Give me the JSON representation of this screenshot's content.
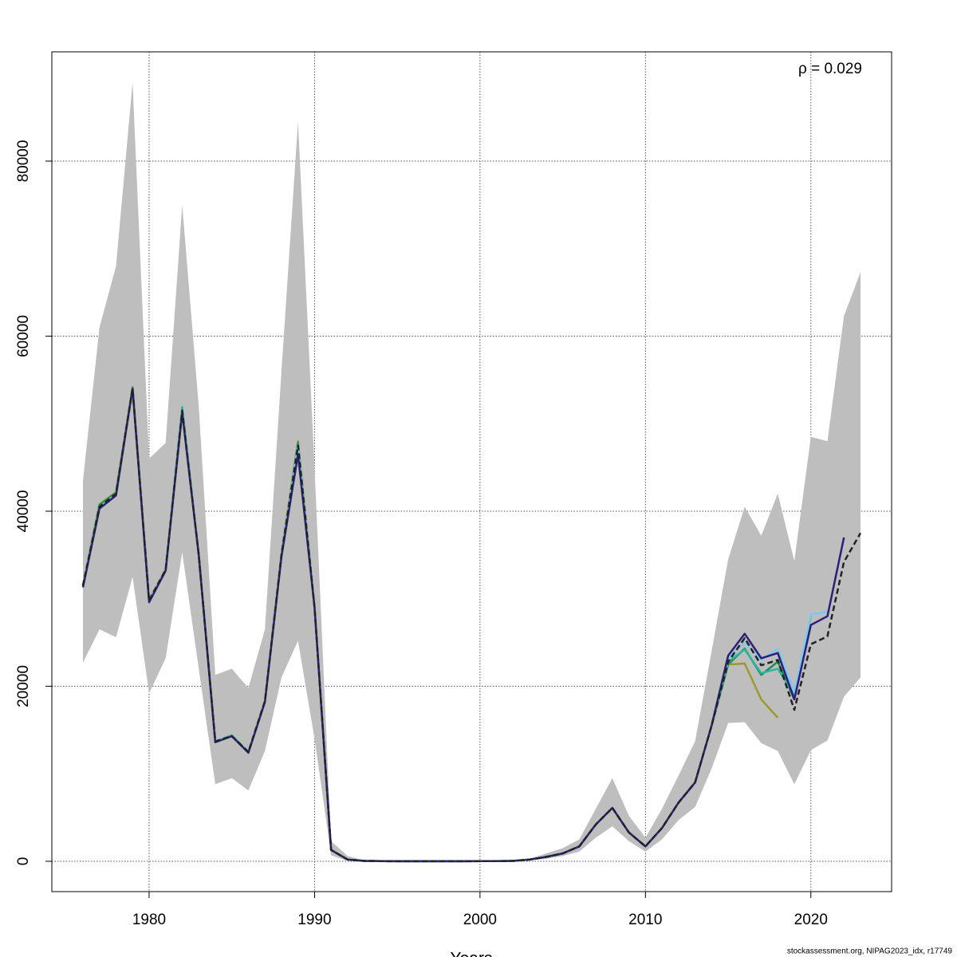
{
  "chart_data": {
    "type": "line",
    "annotation": "ρ = 0.029",
    "xlabel": "Years",
    "footer": "stockassessment.org, NIPAG2023_idx, r17749",
    "x": [
      1976,
      1977,
      1978,
      1979,
      1980,
      1981,
      1982,
      1983,
      1984,
      1985,
      1986,
      1987,
      1988,
      1989,
      1990,
      1991,
      1992,
      1993,
      1994,
      1995,
      1996,
      1997,
      1998,
      1999,
      2000,
      2001,
      2002,
      2003,
      2004,
      2005,
      2006,
      2007,
      2008,
      2009,
      2010,
      2011,
      2012,
      2013,
      2014,
      2015,
      2016,
      2017,
      2018,
      2019,
      2020,
      2021,
      2022,
      2023
    ],
    "band": {
      "color": "#bebebe",
      "upper": [
        43500,
        61000,
        68000,
        89000,
        46000,
        47800,
        75000,
        52000,
        21300,
        22000,
        19800,
        26500,
        56000,
        84500,
        45000,
        2300,
        600,
        100,
        60,
        40,
        40,
        40,
        40,
        40,
        60,
        60,
        120,
        300,
        900,
        1500,
        2500,
        6000,
        9500,
        5200,
        2700,
        6000,
        9800,
        13700,
        24000,
        34500,
        40500,
        37200,
        42000,
        34300,
        48500,
        48000,
        62300,
        67300
      ],
      "lower": [
        22700,
        26500,
        25600,
        32500,
        19200,
        23200,
        35300,
        22000,
        8800,
        9500,
        8100,
        12600,
        21000,
        25200,
        14000,
        700,
        50,
        10,
        5,
        2,
        2,
        2,
        2,
        2,
        5,
        5,
        20,
        100,
        300,
        600,
        1100,
        2700,
        4000,
        2300,
        1100,
        2500,
        4700,
        6200,
        10600,
        15800,
        15900,
        13500,
        12600,
        8800,
        12700,
        13800,
        18800,
        21000
      ]
    },
    "series": [
      {
        "color": "#9a9a30",
        "values": [
          31500,
          40800,
          42200,
          54200,
          29900,
          33400,
          51400,
          35000,
          13700,
          14300,
          12500,
          18300,
          35200,
          48000,
          29000,
          1300,
          200,
          50,
          20,
          10,
          10,
          10,
          10,
          10,
          20,
          20,
          50,
          200,
          500,
          900,
          1700,
          4200,
          6100,
          3300,
          1700,
          3800,
          6700,
          9000,
          15500,
          22500,
          22600,
          18500,
          16400,
          null,
          null,
          null,
          null,
          null
        ]
      },
      {
        "color": "#1e8c4e",
        "values": [
          31500,
          40700,
          42100,
          54100,
          29800,
          33300,
          51500,
          35000,
          13700,
          14300,
          12500,
          18300,
          35000,
          47800,
          29000,
          1300,
          200,
          50,
          20,
          10,
          10,
          10,
          10,
          10,
          20,
          20,
          50,
          200,
          500,
          900,
          1700,
          4200,
          6100,
          3300,
          1700,
          3800,
          6700,
          9000,
          15500,
          22500,
          24300,
          21300,
          22800,
          18500,
          null,
          null,
          null,
          null
        ]
      },
      {
        "color": "#2bb5a0",
        "values": [
          31500,
          40500,
          42000,
          54000,
          29800,
          33300,
          51900,
          35000,
          13700,
          14400,
          12500,
          18300,
          35000,
          47600,
          29000,
          1300,
          200,
          50,
          20,
          10,
          10,
          10,
          10,
          10,
          20,
          20,
          50,
          200,
          500,
          900,
          1700,
          4200,
          6100,
          3300,
          1700,
          3800,
          6700,
          9000,
          15500,
          22800,
          24200,
          21500,
          22000,
          19000,
          28000,
          null,
          null,
          null
        ]
      },
      {
        "color": "#7ec8f0",
        "values": [
          31500,
          40400,
          41900,
          54000,
          29800,
          33300,
          51500,
          35000,
          13700,
          14300,
          12500,
          18300,
          35000,
          47500,
          29000,
          1300,
          200,
          50,
          20,
          10,
          10,
          10,
          10,
          10,
          20,
          20,
          50,
          200,
          500,
          900,
          1700,
          4200,
          6100,
          3300,
          1700,
          3800,
          6700,
          9000,
          15500,
          23300,
          25000,
          23000,
          24300,
          19300,
          28200,
          28500,
          null,
          null
        ]
      },
      {
        "color": "#2b1f7a",
        "values": [
          31300,
          40300,
          41800,
          54000,
          29600,
          33200,
          51300,
          35000,
          13600,
          14300,
          12400,
          18200,
          34800,
          46500,
          29000,
          1300,
          200,
          50,
          20,
          10,
          10,
          10,
          10,
          10,
          20,
          20,
          50,
          200,
          500,
          900,
          1700,
          4200,
          6100,
          3300,
          1700,
          3800,
          6700,
          9000,
          15500,
          23500,
          26000,
          23200,
          23800,
          18500,
          27000,
          28000,
          37000,
          null
        ]
      },
      {
        "color": "#222222",
        "dashed": true,
        "values": [
          31500,
          40500,
          42000,
          54000,
          29800,
          33300,
          51500,
          35000,
          13700,
          14300,
          12500,
          18300,
          35000,
          47500,
          29000,
          1300,
          200,
          50,
          20,
          10,
          10,
          10,
          10,
          10,
          20,
          20,
          50,
          200,
          500,
          900,
          1700,
          4200,
          6100,
          3300,
          1700,
          3800,
          6700,
          9000,
          15500,
          22800,
          25500,
          22400,
          23000,
          17300,
          24800,
          25700,
          34200,
          37500
        ]
      }
    ],
    "xlim": [
      1974.12,
      2024.88
    ],
    "ylim": [
      -3462,
      92483
    ],
    "xticks": [
      1980,
      1990,
      2000,
      2010,
      2020
    ],
    "yticks": [
      0,
      20000,
      40000,
      60000,
      80000
    ],
    "grid": true
  }
}
